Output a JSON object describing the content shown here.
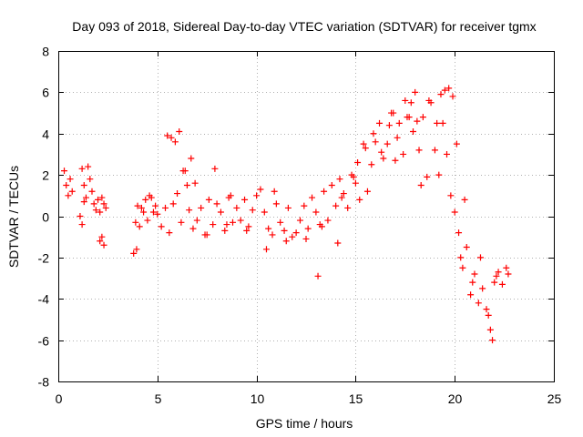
{
  "chart_data": {
    "type": "scatter",
    "title": "Day 093 of 2018, Sidereal Day-to-day VTEC variation (SDTVAR) for receiver tgmx",
    "xlabel": "GPS time / hours",
    "ylabel": "SDTVAR / TECUs",
    "xlim": [
      0,
      25
    ],
    "ylim": [
      -8,
      8
    ],
    "xticks": [
      0,
      5,
      10,
      15,
      20,
      25
    ],
    "yticks": [
      -8,
      -6,
      -4,
      -2,
      0,
      2,
      4,
      6,
      8
    ],
    "grid": true,
    "marker": "+",
    "color": "#ff0000",
    "series": [
      {
        "name": "SDTVAR",
        "x": [
          0.3,
          0.4,
          0.5,
          0.6,
          0.7,
          1.1,
          1.2,
          1.3,
          1.4,
          1.5,
          1.6,
          1.7,
          1.8,
          1.9,
          2.0,
          2.1,
          2.2,
          2.3,
          2.4,
          2.1,
          2.2,
          2.3,
          1.2,
          1.3,
          3.8,
          3.9,
          4.0,
          4.1,
          4.3,
          4.5,
          4.7,
          4.9,
          5.0,
          5.2,
          5.4,
          5.6,
          5.8,
          6.0,
          6.2,
          6.4,
          6.6,
          6.8,
          7.0,
          7.2,
          7.4,
          7.6,
          7.8,
          8.0,
          8.2,
          8.4,
          8.6,
          8.8,
          9.0,
          9.2,
          9.4,
          9.6,
          9.8,
          10.0,
          10.2,
          10.4,
          10.6,
          10.8,
          11.0,
          11.2,
          11.4,
          11.6,
          11.8,
          12.0,
          12.2,
          12.4,
          12.6,
          12.8,
          13.0,
          13.2,
          13.4,
          13.6,
          13.8,
          14.0,
          14.2,
          14.4,
          14.6,
          14.8,
          15.0,
          15.2,
          15.4,
          15.6,
          15.8,
          16.0,
          16.2,
          16.4,
          16.6,
          16.8,
          17.0,
          17.2,
          17.4,
          17.6,
          17.8,
          18.0,
          18.2,
          18.4,
          18.6,
          18.8,
          19.0,
          19.2,
          19.4,
          19.6,
          19.8,
          20.0,
          20.2,
          20.4,
          20.6,
          20.8,
          21.0,
          21.2,
          21.4,
          21.6,
          21.8,
          22.0,
          22.2,
          22.4,
          22.6,
          22.7,
          5.5,
          5.7,
          5.9,
          6.1,
          6.3,
          6.5,
          6.7,
          6.9,
          8.5,
          8.7,
          10.5,
          13.1,
          13.3,
          14.1,
          15.5,
          15.9,
          16.3,
          16.7,
          17.1,
          17.5,
          17.9,
          18.3,
          18.7,
          19.1,
          19.5,
          19.7,
          19.9,
          20.1,
          20.5,
          20.9,
          21.3,
          21.7,
          21.9,
          20.3,
          19.3,
          17.7,
          16.9,
          12.5,
          11.5,
          9.5,
          7.5,
          4.2,
          4.4,
          4.6,
          4.8,
          3.95,
          7.9,
          10.9,
          14.3,
          14.9,
          15.1,
          18.1,
          22.1
        ],
        "y": [
          2.2,
          1.5,
          1.0,
          1.8,
          1.2,
          0.0,
          2.3,
          1.5,
          0.9,
          2.4,
          1.8,
          1.2,
          0.6,
          0.3,
          0.8,
          0.2,
          0.9,
          0.6,
          0.4,
          -1.2,
          -1.0,
          -1.4,
          -0.4,
          0.7,
          -1.8,
          -0.3,
          0.5,
          -0.5,
          0.2,
          -0.2,
          0.9,
          0.5,
          0.1,
          -0.5,
          0.4,
          -0.8,
          0.6,
          1.1,
          -0.3,
          2.2,
          0.3,
          -0.6,
          -0.2,
          0.4,
          -0.9,
          0.8,
          -0.4,
          0.6,
          0.2,
          -0.7,
          0.9,
          -0.3,
          0.4,
          -0.2,
          0.8,
          -0.5,
          0.3,
          1.0,
          1.3,
          0.2,
          -0.6,
          -0.9,
          0.6,
          -0.3,
          -0.7,
          0.4,
          -1.0,
          -0.8,
          -0.2,
          0.5,
          -0.6,
          0.9,
          0.2,
          -0.4,
          1.2,
          -0.2,
          1.5,
          0.5,
          1.8,
          1.1,
          0.4,
          2.0,
          1.6,
          0.8,
          3.5,
          1.2,
          2.5,
          3.6,
          4.5,
          2.8,
          3.5,
          5.0,
          2.7,
          4.5,
          3.0,
          4.8,
          5.5,
          6.0,
          3.2,
          4.8,
          1.9,
          5.5,
          3.2,
          2.0,
          4.5,
          3.0,
          1.0,
          0.2,
          -0.8,
          -2.5,
          -1.5,
          -3.8,
          -2.8,
          -4.2,
          -3.5,
          -4.5,
          -5.5,
          -3.2,
          -2.7,
          -3.3,
          -2.5,
          -2.8,
          3.9,
          3.8,
          3.6,
          4.1,
          2.2,
          1.5,
          2.8,
          1.6,
          -0.4,
          1.0,
          -1.6,
          -2.9,
          -0.5,
          -1.3,
          3.3,
          4.0,
          3.1,
          4.4,
          3.8,
          5.6,
          4.1,
          1.5,
          5.6,
          4.5,
          6.1,
          6.2,
          5.8,
          3.5,
          0.8,
          -3.2,
          -2.0,
          -4.8,
          -6.0,
          -2.0,
          5.9,
          4.8,
          5.0,
          -1.1,
          -1.2,
          -0.7,
          -0.9,
          0.4,
          0.8,
          1.0,
          0.2,
          -1.6,
          2.3,
          1.2,
          0.9,
          1.9,
          2.6,
          4.6,
          -2.9
        ]
      }
    ]
  }
}
